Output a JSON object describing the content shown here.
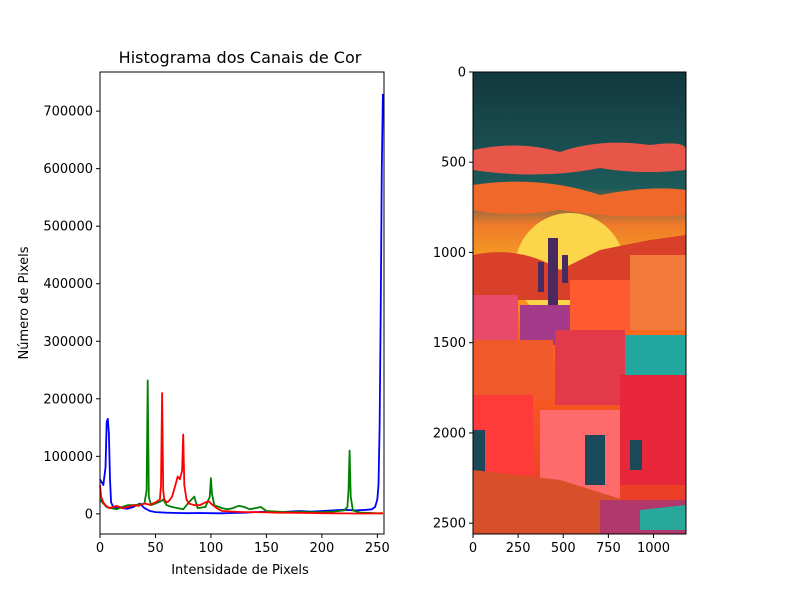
{
  "chart_data": [
    {
      "type": "line",
      "title": "Histograma dos Canais de Cor",
      "xlabel": "Intensidade de Pixels",
      "ylabel": "Número de Pixels",
      "xlim": [
        0,
        256
      ],
      "ylim": [
        -35000,
        768000
      ],
      "xticks": [
        0,
        50,
        100,
        150,
        200,
        250
      ],
      "xtick_labels": [
        "0",
        "50",
        "100",
        "150",
        "200",
        "250"
      ],
      "yticks": [
        0,
        100000,
        200000,
        300000,
        400000,
        500000,
        600000,
        700000
      ],
      "ytick_labels": [
        "0",
        "100000",
        "200000",
        "300000",
        "400000",
        "500000",
        "600000",
        "700000"
      ],
      "grid": false,
      "series": [
        {
          "color": "#0000ff",
          "points": [
            [
              0,
              60000
            ],
            [
              3,
              50000
            ],
            [
              5,
              80000
            ],
            [
              6,
              160000
            ],
            [
              7,
              165000
            ],
            [
              8,
              140000
            ],
            [
              9,
              60000
            ],
            [
              10,
              20000
            ],
            [
              12,
              12000
            ],
            [
              15,
              10000
            ],
            [
              18,
              12000
            ],
            [
              20,
              10000
            ],
            [
              25,
              9000
            ],
            [
              30,
              12000
            ],
            [
              33,
              15000
            ],
            [
              36,
              18000
            ],
            [
              40,
              10000
            ],
            [
              45,
              5000
            ],
            [
              50,
              3000
            ],
            [
              60,
              2000
            ],
            [
              70,
              1500
            ],
            [
              80,
              1200
            ],
            [
              90,
              1500
            ],
            [
              100,
              1200
            ],
            [
              110,
              1000
            ],
            [
              120,
              1500
            ],
            [
              130,
              2000
            ],
            [
              140,
              3000
            ],
            [
              150,
              3500
            ],
            [
              160,
              3000
            ],
            [
              170,
              4000
            ],
            [
              180,
              5000
            ],
            [
              190,
              4000
            ],
            [
              200,
              5000
            ],
            [
              210,
              6000
            ],
            [
              220,
              7000
            ],
            [
              230,
              6000
            ],
            [
              240,
              7000
            ],
            [
              245,
              8000
            ],
            [
              248,
              12000
            ],
            [
              250,
              25000
            ],
            [
              251,
              50000
            ],
            [
              252,
              150000
            ],
            [
              253,
              350000
            ],
            [
              254,
              600000
            ],
            [
              255,
              730000
            ]
          ]
        },
        {
          "color": "#008000",
          "points": [
            [
              0,
              25000
            ],
            [
              3,
              18000
            ],
            [
              6,
              12000
            ],
            [
              10,
              10000
            ],
            [
              15,
              8000
            ],
            [
              20,
              12000
            ],
            [
              25,
              15000
            ],
            [
              30,
              15000
            ],
            [
              35,
              16000
            ],
            [
              40,
              18000
            ],
            [
              42,
              40000
            ],
            [
              43,
              232000
            ],
            [
              44,
              30000
            ],
            [
              46,
              15000
            ],
            [
              50,
              18000
            ],
            [
              55,
              22000
            ],
            [
              57,
              25000
            ],
            [
              60,
              15000
            ],
            [
              65,
              12000
            ],
            [
              70,
              10000
            ],
            [
              75,
              8000
            ],
            [
              80,
              20000
            ],
            [
              85,
              30000
            ],
            [
              88,
              10000
            ],
            [
              95,
              12000
            ],
            [
              99,
              30000
            ],
            [
              100,
              62000
            ],
            [
              101,
              35000
            ],
            [
              103,
              15000
            ],
            [
              110,
              10000
            ],
            [
              115,
              8000
            ],
            [
              120,
              10000
            ],
            [
              125,
              14000
            ],
            [
              130,
              12000
            ],
            [
              135,
              8000
            ],
            [
              140,
              10000
            ],
            [
              145,
              12000
            ],
            [
              150,
              5000
            ],
            [
              160,
              4000
            ],
            [
              170,
              3000
            ],
            [
              180,
              3500
            ],
            [
              190,
              3000
            ],
            [
              200,
              3000
            ],
            [
              210,
              4000
            ],
            [
              220,
              6000
            ],
            [
              223,
              12000
            ],
            [
              224,
              40000
            ],
            [
              225,
              110000
            ],
            [
              226,
              30000
            ],
            [
              228,
              6000
            ],
            [
              235,
              2000
            ],
            [
              245,
              1500
            ],
            [
              250,
              1000
            ],
            [
              255,
              1000
            ]
          ]
        },
        {
          "color": "#ff0000",
          "points": [
            [
              0,
              50000
            ],
            [
              1,
              30000
            ],
            [
              3,
              20000
            ],
            [
              5,
              15000
            ],
            [
              8,
              10000
            ],
            [
              12,
              12000
            ],
            [
              15,
              14000
            ],
            [
              20,
              10000
            ],
            [
              25,
              12000
            ],
            [
              30,
              15000
            ],
            [
              35,
              14000
            ],
            [
              40,
              18000
            ],
            [
              45,
              16000
            ],
            [
              50,
              20000
            ],
            [
              54,
              25000
            ],
            [
              55,
              50000
            ],
            [
              56,
              210000
            ],
            [
              57,
              40000
            ],
            [
              58,
              25000
            ],
            [
              60,
              20000
            ],
            [
              62,
              22000
            ],
            [
              65,
              30000
            ],
            [
              68,
              50000
            ],
            [
              70,
              65000
            ],
            [
              72,
              60000
            ],
            [
              74,
              75000
            ],
            [
              75,
              138000
            ],
            [
              76,
              50000
            ],
            [
              78,
              25000
            ],
            [
              80,
              18000
            ],
            [
              85,
              15000
            ],
            [
              90,
              15000
            ],
            [
              95,
              20000
            ],
            [
              98,
              22000
            ],
            [
              100,
              18000
            ],
            [
              105,
              10000
            ],
            [
              110,
              5000
            ],
            [
              120,
              4000
            ],
            [
              130,
              3000
            ],
            [
              140,
              3000
            ],
            [
              150,
              2500
            ],
            [
              160,
              2000
            ],
            [
              170,
              2000
            ],
            [
              180,
              1800
            ],
            [
              190,
              1500
            ],
            [
              200,
              1200
            ],
            [
              210,
              1000
            ],
            [
              220,
              800
            ],
            [
              230,
              700
            ],
            [
              240,
              600
            ],
            [
              250,
              800
            ],
            [
              255,
              1000
            ]
          ]
        }
      ]
    },
    {
      "type": "image",
      "xlim": [
        0,
        1180
      ],
      "ylim": [
        2560,
        0
      ],
      "xticks": [
        0,
        250,
        500,
        750,
        1000
      ],
      "xtick_labels": [
        "0",
        "250",
        "500",
        "750",
        "1000"
      ],
      "yticks": [
        0,
        500,
        1000,
        1500,
        2000,
        2500
      ],
      "ytick_labels": [
        "0",
        "500",
        "1000",
        "1500",
        "2000",
        "2500"
      ]
    }
  ]
}
